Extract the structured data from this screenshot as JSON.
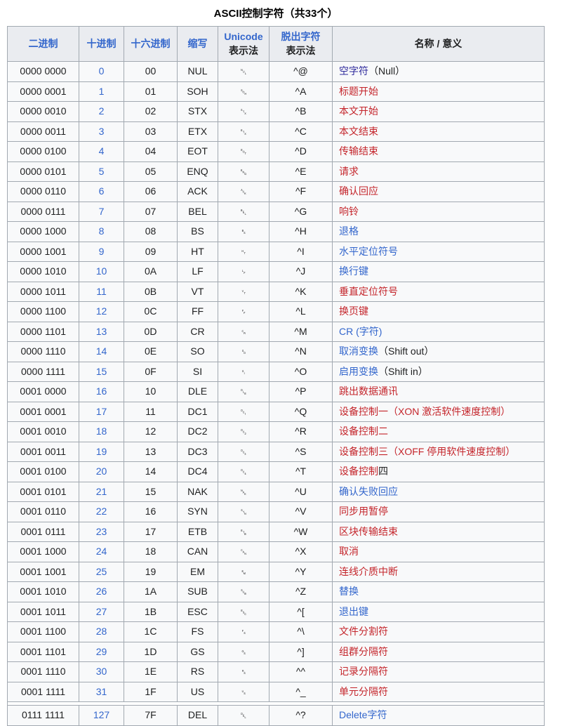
{
  "table": {
    "caption": "ASCII控制字符（共33个）",
    "colors": {
      "link_blue": "#3366cc",
      "link_visited": "#2f2b9c",
      "link_red": "#c4252b",
      "header_bg": "#eaecf0",
      "row_bg": "#f8f9fa",
      "border": "#a2a9b1",
      "page_bg": "#ffffff"
    },
    "headers": [
      {
        "lines": [
          {
            "text": "二进制",
            "link": "blue"
          }
        ]
      },
      {
        "lines": [
          {
            "text": "十进制",
            "link": "blue"
          }
        ]
      },
      {
        "lines": [
          {
            "text": "十六进制",
            "link": "blue"
          }
        ]
      },
      {
        "lines": [
          {
            "text": "缩写",
            "link": "blue"
          }
        ]
      },
      {
        "lines": [
          {
            "text": "Unicode",
            "link": "blue"
          },
          {
            "text": "表示法",
            "link": null
          }
        ]
      },
      {
        "lines": [
          {
            "text": "脱出字符",
            "link": "blue"
          },
          {
            "text": "表示法",
            "link": null
          }
        ]
      },
      {
        "lines": [
          {
            "text": "名称 / 意义",
            "link": null
          }
        ]
      }
    ],
    "rows": [
      {
        "binary": "0000 0000",
        "decimal": "0",
        "hex": "00",
        "abbr": "NUL",
        "unicode": "␀",
        "escape": "^@",
        "name": [
          {
            "text": "空字符",
            "link": "visited"
          },
          {
            "text": "（Null）",
            "link": null
          }
        ]
      },
      {
        "binary": "0000 0001",
        "decimal": "1",
        "hex": "01",
        "abbr": "SOH",
        "unicode": "␁",
        "escape": "^A",
        "name": [
          {
            "text": "标题开始",
            "link": "red"
          }
        ]
      },
      {
        "binary": "0000 0010",
        "decimal": "2",
        "hex": "02",
        "abbr": "STX",
        "unicode": "␂",
        "escape": "^B",
        "name": [
          {
            "text": "本文开始",
            "link": "red"
          }
        ]
      },
      {
        "binary": "0000 0011",
        "decimal": "3",
        "hex": "03",
        "abbr": "ETX",
        "unicode": "␃",
        "escape": "^C",
        "name": [
          {
            "text": "本文结束",
            "link": "red"
          }
        ]
      },
      {
        "binary": "0000 0100",
        "decimal": "4",
        "hex": "04",
        "abbr": "EOT",
        "unicode": "␄",
        "escape": "^D",
        "name": [
          {
            "text": "传输结束",
            "link": "red"
          }
        ]
      },
      {
        "binary": "0000 0101",
        "decimal": "5",
        "hex": "05",
        "abbr": "ENQ",
        "unicode": "␅",
        "escape": "^E",
        "name": [
          {
            "text": "请求",
            "link": "red"
          }
        ]
      },
      {
        "binary": "0000 0110",
        "decimal": "6",
        "hex": "06",
        "abbr": "ACK",
        "unicode": "␆",
        "escape": "^F",
        "name": [
          {
            "text": "确认回应",
            "link": "red"
          }
        ]
      },
      {
        "binary": "0000 0111",
        "decimal": "7",
        "hex": "07",
        "abbr": "BEL",
        "unicode": "␇",
        "escape": "^G",
        "name": [
          {
            "text": "响铃",
            "link": "red"
          }
        ]
      },
      {
        "binary": "0000 1000",
        "decimal": "8",
        "hex": "08",
        "abbr": "BS",
        "unicode": "␈",
        "escape": "^H",
        "name": [
          {
            "text": "退格",
            "link": "blue"
          }
        ]
      },
      {
        "binary": "0000 1001",
        "decimal": "9",
        "hex": "09",
        "abbr": "HT",
        "unicode": "␉",
        "escape": "^I",
        "name": [
          {
            "text": "水平定位符号",
            "link": "blue"
          }
        ]
      },
      {
        "binary": "0000 1010",
        "decimal": "10",
        "hex": "0A",
        "abbr": "LF",
        "unicode": "␊",
        "escape": "^J",
        "name": [
          {
            "text": "换行键",
            "link": "blue"
          }
        ]
      },
      {
        "binary": "0000 1011",
        "decimal": "11",
        "hex": "0B",
        "abbr": "VT",
        "unicode": "␋",
        "escape": "^K",
        "name": [
          {
            "text": "垂直定位符号",
            "link": "red"
          }
        ]
      },
      {
        "binary": "0000 1100",
        "decimal": "12",
        "hex": "0C",
        "abbr": "FF",
        "unicode": "␌",
        "escape": "^L",
        "name": [
          {
            "text": "换页键",
            "link": "red"
          }
        ]
      },
      {
        "binary": "0000 1101",
        "decimal": "13",
        "hex": "0D",
        "abbr": "CR",
        "unicode": "␍",
        "escape": "^M",
        "name": [
          {
            "text": "CR (字符)",
            "link": "blue"
          }
        ]
      },
      {
        "binary": "0000 1110",
        "decimal": "14",
        "hex": "0E",
        "abbr": "SO",
        "unicode": "␎",
        "escape": "^N",
        "name": [
          {
            "text": "取消变换",
            "link": "blue"
          },
          {
            "text": "（Shift out）",
            "link": null
          }
        ]
      },
      {
        "binary": "0000 1111",
        "decimal": "15",
        "hex": "0F",
        "abbr": "SI",
        "unicode": "␏",
        "escape": "^O",
        "name": [
          {
            "text": "启用变换",
            "link": "blue"
          },
          {
            "text": "（Shift in）",
            "link": null
          }
        ]
      },
      {
        "binary": "0001 0000",
        "decimal": "16",
        "hex": "10",
        "abbr": "DLE",
        "unicode": "␐",
        "escape": "^P",
        "name": [
          {
            "text": "跳出数据通讯",
            "link": "red"
          }
        ]
      },
      {
        "binary": "0001 0001",
        "decimal": "17",
        "hex": "11",
        "abbr": "DC1",
        "unicode": "␑",
        "escape": "^Q",
        "name": [
          {
            "text": "设备控制一（XON 激活软件速度控制）",
            "link": "red"
          }
        ]
      },
      {
        "binary": "0001 0010",
        "decimal": "18",
        "hex": "12",
        "abbr": "DC2",
        "unicode": "␒",
        "escape": "^R",
        "name": [
          {
            "text": "设备控制二",
            "link": "red"
          }
        ]
      },
      {
        "binary": "0001 0011",
        "decimal": "19",
        "hex": "13",
        "abbr": "DC3",
        "unicode": "␓",
        "escape": "^S",
        "name": [
          {
            "text": "设备控制三（XOFF 停用软件速度控制）",
            "link": "red"
          }
        ]
      },
      {
        "binary": "0001 0100",
        "decimal": "20",
        "hex": "14",
        "abbr": "DC4",
        "unicode": "␔",
        "escape": "^T",
        "name": [
          {
            "text": "设备控制",
            "link": "red"
          },
          {
            "text": "四",
            "link": null
          }
        ]
      },
      {
        "binary": "0001 0101",
        "decimal": "21",
        "hex": "15",
        "abbr": "NAK",
        "unicode": "␕",
        "escape": "^U",
        "name": [
          {
            "text": "确认失败回应",
            "link": "blue"
          }
        ]
      },
      {
        "binary": "0001 0110",
        "decimal": "22",
        "hex": "16",
        "abbr": "SYN",
        "unicode": "␖",
        "escape": "^V",
        "name": [
          {
            "text": "同步用暂停",
            "link": "red"
          }
        ]
      },
      {
        "binary": "0001 0111",
        "decimal": "23",
        "hex": "17",
        "abbr": "ETB",
        "unicode": "␗",
        "escape": "^W",
        "name": [
          {
            "text": "区块传输结束",
            "link": "red"
          }
        ]
      },
      {
        "binary": "0001 1000",
        "decimal": "24",
        "hex": "18",
        "abbr": "CAN",
        "unicode": "␘",
        "escape": "^X",
        "name": [
          {
            "text": "取消",
            "link": "red"
          }
        ]
      },
      {
        "binary": "0001 1001",
        "decimal": "25",
        "hex": "19",
        "abbr": "EM",
        "unicode": "␙",
        "escape": "^Y",
        "name": [
          {
            "text": "连线介质中断",
            "link": "red"
          }
        ]
      },
      {
        "binary": "0001 1010",
        "decimal": "26",
        "hex": "1A",
        "abbr": "SUB",
        "unicode": "␚",
        "escape": "^Z",
        "name": [
          {
            "text": "替换",
            "link": "blue"
          }
        ]
      },
      {
        "binary": "0001 1011",
        "decimal": "27",
        "hex": "1B",
        "abbr": "ESC",
        "unicode": "␛",
        "escape": "^[",
        "name": [
          {
            "text": "退出键",
            "link": "blue"
          }
        ]
      },
      {
        "binary": "0001 1100",
        "decimal": "28",
        "hex": "1C",
        "abbr": "FS",
        "unicode": "␜",
        "escape": "^\\",
        "name": [
          {
            "text": "文件分割符",
            "link": "red"
          }
        ]
      },
      {
        "binary": "0001 1101",
        "decimal": "29",
        "hex": "1D",
        "abbr": "GS",
        "unicode": "␝",
        "escape": "^]",
        "name": [
          {
            "text": "组群分隔符",
            "link": "red"
          }
        ]
      },
      {
        "binary": "0001 1110",
        "decimal": "30",
        "hex": "1E",
        "abbr": "RS",
        "unicode": "␞",
        "escape": "^^",
        "name": [
          {
            "text": "记录分隔符",
            "link": "red"
          }
        ]
      },
      {
        "binary": "0001 1111",
        "decimal": "31",
        "hex": "1F",
        "abbr": "US",
        "unicode": "␟",
        "escape": "^_",
        "name": [
          {
            "text": "单元分隔符",
            "link": "red"
          }
        ]
      },
      {
        "separator_before": true,
        "binary": "0111 1111",
        "decimal": "127",
        "hex": "7F",
        "abbr": "DEL",
        "unicode": "␡",
        "escape": "^?",
        "name": [
          {
            "text": "Delete字符",
            "link": "blue"
          }
        ]
      }
    ]
  }
}
